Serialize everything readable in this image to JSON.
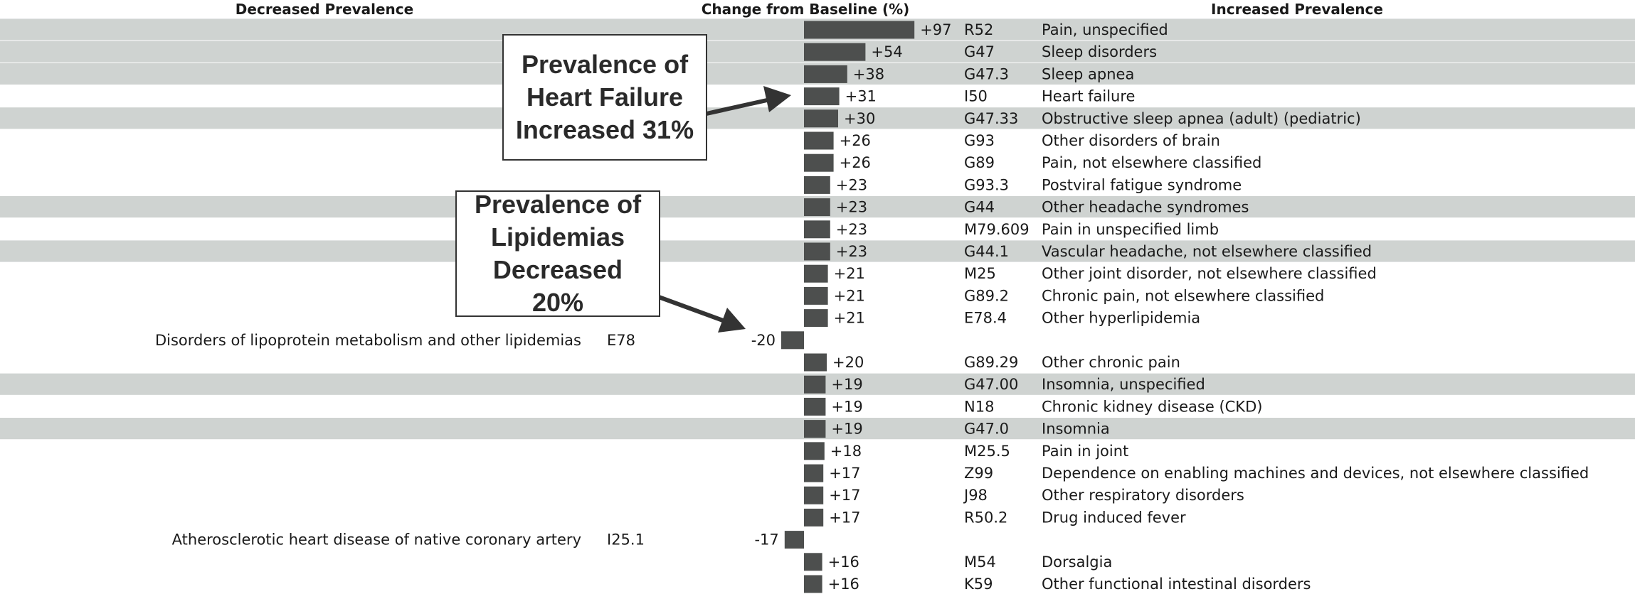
{
  "chart_data": {
    "type": "bar",
    "headers": {
      "left": "Decreased Prevalence",
      "center": "Change from Baseline (%)",
      "right": "Increased Prevalence"
    },
    "rows": [
      {
        "value": 97,
        "label": "+97",
        "code": "R52",
        "description": "Pain, unspecified",
        "shaded": true
      },
      {
        "value": 54,
        "label": "+54",
        "code": "G47",
        "description": "Sleep disorders",
        "shaded": true
      },
      {
        "value": 38,
        "label": "+38",
        "code": "G47.3",
        "description": "Sleep apnea",
        "shaded": true
      },
      {
        "value": 31,
        "label": "+31",
        "code": "I50",
        "description": "Heart failure",
        "shaded": false
      },
      {
        "value": 30,
        "label": "+30",
        "code": "G47.33",
        "description": "Obstructive sleep apnea (adult) (pediatric)",
        "shaded": true
      },
      {
        "value": 26,
        "label": "+26",
        "code": "G93",
        "description": "Other disorders of brain",
        "shaded": false
      },
      {
        "value": 26,
        "label": "+26",
        "code": "G89",
        "description": "Pain, not elsewhere classified",
        "shaded": false
      },
      {
        "value": 23,
        "label": "+23",
        "code": "G93.3",
        "description": "Postviral fatigue syndrome",
        "shaded": false
      },
      {
        "value": 23,
        "label": "+23",
        "code": "G44",
        "description": "Other headache syndromes",
        "shaded": true
      },
      {
        "value": 23,
        "label": "+23",
        "code": "M79.609",
        "description": "Pain in unspecified limb",
        "shaded": false
      },
      {
        "value": 23,
        "label": "+23",
        "code": "G44.1",
        "description": "Vascular headache, not elsewhere classified",
        "shaded": true
      },
      {
        "value": 21,
        "label": "+21",
        "code": "M25",
        "description": "Other joint disorder, not elsewhere classified",
        "shaded": false
      },
      {
        "value": 21,
        "label": "+21",
        "code": "G89.2",
        "description": "Chronic pain, not elsewhere classified",
        "shaded": false
      },
      {
        "value": 21,
        "label": "+21",
        "code": "E78.4",
        "description": "Other hyperlipidemia",
        "shaded": false
      },
      {
        "value": -20,
        "label": "-20",
        "code": "E78",
        "description": "Disorders of lipoprotein metabolism and other lipidemias",
        "shaded": false
      },
      {
        "value": 20,
        "label": "+20",
        "code": "G89.29",
        "description": "Other chronic pain",
        "shaded": false
      },
      {
        "value": 19,
        "label": "+19",
        "code": "G47.00",
        "description": "Insomnia, unspecified",
        "shaded": true
      },
      {
        "value": 19,
        "label": "+19",
        "code": "N18",
        "description": "Chronic kidney disease (CKD)",
        "shaded": false
      },
      {
        "value": 19,
        "label": "+19",
        "code": "G47.0",
        "description": "Insomnia",
        "shaded": true
      },
      {
        "value": 18,
        "label": "+18",
        "code": "M25.5",
        "description": "Pain in joint",
        "shaded": false
      },
      {
        "value": 17,
        "label": "+17",
        "code": "Z99",
        "description": "Dependence on enabling machines and devices, not elsewhere classified",
        "shaded": false
      },
      {
        "value": 17,
        "label": "+17",
        "code": "J98",
        "description": "Other respiratory disorders",
        "shaded": false
      },
      {
        "value": 17,
        "label": "+17",
        "code": "R50.2",
        "description": "Drug induced fever",
        "shaded": false
      },
      {
        "value": -17,
        "label": "-17",
        "code": "I25.1",
        "description": "Atherosclerotic heart disease of native coronary artery",
        "shaded": false
      },
      {
        "value": 16,
        "label": "+16",
        "code": "M54",
        "description": "Dorsalgia",
        "shaded": false
      },
      {
        "value": 16,
        "label": "+16",
        "code": "K59",
        "description": "Other functional intestinal disorders",
        "shaded": false
      }
    ],
    "grid": false,
    "legend": "none"
  },
  "colors": {
    "bar": "#4d4f4e",
    "row_shade": "#cfd3d1",
    "text": "#1a1a1a",
    "arrow": "#333333"
  },
  "callouts": {
    "heart_failure": {
      "line1": "Prevalence of",
      "line2": "Heart Failure",
      "line3": "Increased 31%"
    },
    "lipidemias": {
      "line1": "Prevalence of",
      "line2": "Lipidemias",
      "line3": "Decreased 20%"
    }
  }
}
